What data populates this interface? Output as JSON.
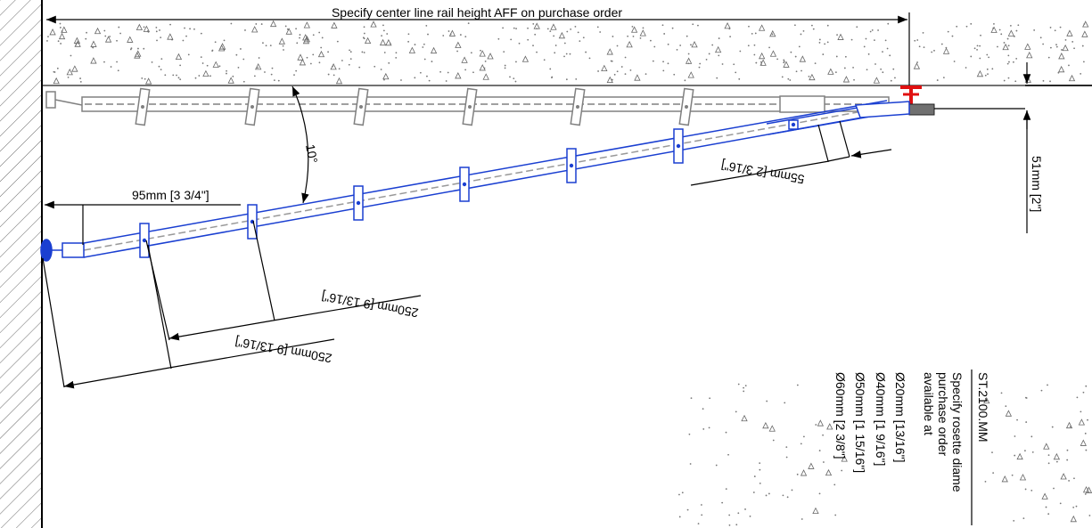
{
  "top_note": "Specify center line rail height AFF on purchase order",
  "dimensions": {
    "angle": "10°",
    "wall_offset": "95mm [3 3/4\"]",
    "end_offset": "55mm [2 3/16\"]",
    "ceiling_drop": "51mm [2\"]",
    "spacing_1": "250mm [9 13/16\"]",
    "spacing_2": "250mm [9 13/16\"]"
  },
  "spec_block": {
    "title": "ST.2100.MM",
    "lines": [
      "Specify rosette diame",
      "purchase order",
      "available at",
      "Ø20mm [13/16\"]",
      "Ø40mm [1 9/16\"]",
      "Ø50mm [1 15/16\"]",
      "Ø60mm [2 3/8\"]"
    ]
  },
  "colors": {
    "rail_blue": "#1a3fd1",
    "rail_gray": "#808080",
    "bracket_red": "#e01010",
    "line_black": "#000000"
  }
}
